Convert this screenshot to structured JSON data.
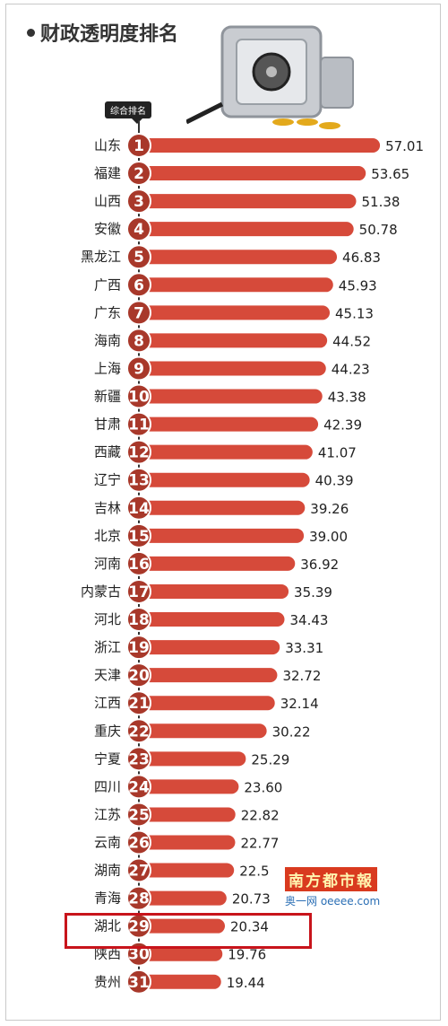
{
  "header": {
    "title": "财政透明度排名",
    "tag": "综合排名"
  },
  "watermark": {
    "main": "南方都市報",
    "sub": "奥一网 oeeee.com"
  },
  "chart_data": {
    "type": "bar",
    "title": "财政透明度排名",
    "categories": [
      "山东",
      "福建",
      "山西",
      "安徽",
      "黑龙江",
      "广西",
      "广东",
      "海南",
      "上海",
      "新疆",
      "甘肃",
      "西藏",
      "辽宁",
      "吉林",
      "北京",
      "河南",
      "内蒙古",
      "河北",
      "浙江",
      "天津",
      "江西",
      "重庆",
      "宁夏",
      "四川",
      "江苏",
      "云南",
      "湖南",
      "青海",
      "湖北",
      "陕西",
      "贵州"
    ],
    "ranks": [
      1,
      2,
      3,
      4,
      5,
      6,
      7,
      8,
      9,
      10,
      11,
      12,
      13,
      14,
      15,
      16,
      17,
      18,
      19,
      20,
      21,
      22,
      23,
      24,
      25,
      26,
      27,
      28,
      29,
      30,
      31
    ],
    "values": [
      57.01,
      53.65,
      51.38,
      50.78,
      46.83,
      45.93,
      45.13,
      44.52,
      44.23,
      43.38,
      42.39,
      41.07,
      40.39,
      39.26,
      39.0,
      36.92,
      35.39,
      34.43,
      33.31,
      32.72,
      32.14,
      30.22,
      25.29,
      23.6,
      22.82,
      22.77,
      22.5,
      20.73,
      20.34,
      19.76,
      19.44
    ],
    "value_labels": [
      "57.01",
      "53.65",
      "51.38",
      "50.78",
      "46.83",
      "45.93",
      "45.13",
      "44.52",
      "44.23",
      "43.38",
      "42.39",
      "41.07",
      "40.39",
      "39.26",
      "39.00",
      "36.92",
      "35.39",
      "34.43",
      "33.31",
      "32.72",
      "32.14",
      "30.22",
      "25.29",
      "23.60",
      "22.82",
      "22.77",
      "22.5",
      "20.73",
      "20.34",
      "19.76",
      "19.44"
    ],
    "highlighted": "湖北",
    "colors": {
      "bar": "#d64a3a",
      "badge": "#a8382a",
      "highlight_box": "#c8141b"
    }
  }
}
